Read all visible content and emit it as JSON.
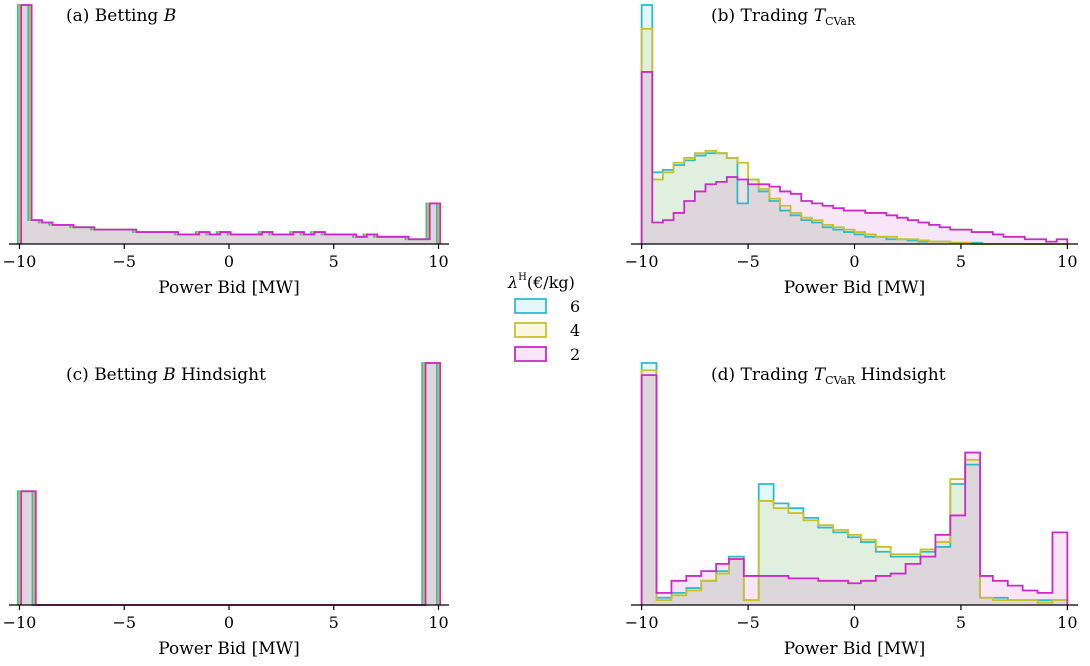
{
  "legend": {
    "title": "λ",
    "title_sup": "H",
    "title_unit": "(€/kg)",
    "entries": [
      {
        "label": "6",
        "color": "#2bbdc9"
      },
      {
        "label": "4",
        "color": "#c9c12b"
      },
      {
        "label": "2",
        "color": "#c92bc9"
      }
    ]
  },
  "chart_data": [
    {
      "type": "histogram",
      "title": "(a) Betting ",
      "title_symbol": "B",
      "title_sub": "",
      "title_suffix": "",
      "xlabel": "Power Bid [MW]",
      "xlim": [
        -10.5,
        10.5
      ],
      "ylim": [
        0,
        1.0
      ],
      "xticks": [
        -10,
        -5,
        0,
        5,
        10
      ],
      "xtick_labels": [
        "−10",
        "−5",
        "0",
        "5",
        "10"
      ],
      "bins": [
        -10,
        -9.5,
        -9,
        -8.5,
        -8,
        -7.5,
        -7,
        -6.5,
        -6,
        -5.5,
        -5,
        -4.5,
        -4,
        -3.5,
        -3,
        -2.5,
        -2,
        -1.5,
        -1,
        -0.5,
        0,
        0.5,
        1,
        1.5,
        2,
        2.5,
        3,
        3.5,
        4,
        4.5,
        5,
        5.5,
        6,
        6.5,
        7,
        7.5,
        8,
        8.5,
        9,
        9.5,
        10
      ],
      "series": [
        {
          "name": "6",
          "offset": -0.08,
          "values": [
            1.0,
            0.1,
            0.09,
            0.08,
            0.08,
            0.07,
            0.07,
            0.06,
            0.06,
            0.06,
            0.06,
            0.05,
            0.05,
            0.05,
            0.05,
            0.04,
            0.04,
            0.05,
            0.04,
            0.05,
            0.04,
            0.04,
            0.04,
            0.05,
            0.04,
            0.04,
            0.05,
            0.04,
            0.05,
            0.04,
            0.04,
            0.04,
            0.03,
            0.04,
            0.03,
            0.03,
            0.03,
            0.02,
            0.02,
            0.17
          ]
        },
        {
          "name": "4",
          "offset": 0.0,
          "values": [
            1.0,
            0.1,
            0.09,
            0.08,
            0.08,
            0.07,
            0.07,
            0.06,
            0.06,
            0.06,
            0.06,
            0.05,
            0.05,
            0.05,
            0.05,
            0.04,
            0.04,
            0.05,
            0.04,
            0.05,
            0.04,
            0.04,
            0.04,
            0.05,
            0.04,
            0.04,
            0.05,
            0.04,
            0.05,
            0.04,
            0.04,
            0.04,
            0.03,
            0.04,
            0.03,
            0.03,
            0.03,
            0.02,
            0.02,
            0.17
          ]
        },
        {
          "name": "2",
          "offset": 0.08,
          "values": [
            1.0,
            0.1,
            0.09,
            0.08,
            0.08,
            0.07,
            0.07,
            0.06,
            0.06,
            0.06,
            0.06,
            0.05,
            0.05,
            0.05,
            0.05,
            0.04,
            0.04,
            0.05,
            0.04,
            0.05,
            0.04,
            0.04,
            0.04,
            0.05,
            0.04,
            0.04,
            0.05,
            0.04,
            0.05,
            0.04,
            0.04,
            0.04,
            0.03,
            0.04,
            0.03,
            0.03,
            0.03,
            0.02,
            0.02,
            0.17
          ]
        }
      ]
    },
    {
      "type": "histogram",
      "title": "(b) Trading ",
      "title_symbol": "T",
      "title_sub": "CVaR",
      "title_suffix": "",
      "xlabel": "Power Bid [MW]",
      "xlim": [
        -10.5,
        10.5
      ],
      "ylim": [
        0,
        1.0
      ],
      "xticks": [
        -10,
        -5,
        0,
        5,
        10
      ],
      "xtick_labels": [
        "−10",
        "−5",
        "0",
        "5",
        "10"
      ],
      "bins": [
        -10,
        -9.5,
        -9,
        -8.5,
        -8,
        -7.5,
        -7,
        -6.5,
        -6,
        -5.5,
        -5,
        -4.5,
        -4,
        -3.5,
        -3,
        -2.5,
        -2,
        -1.5,
        -1,
        -0.5,
        0,
        0.5,
        1,
        1.5,
        2,
        2.5,
        3,
        3.5,
        4,
        4.5,
        5,
        5.5,
        6,
        6.5,
        7,
        7.5,
        8,
        8.5,
        9,
        9.5,
        10
      ],
      "series": [
        {
          "name": "6",
          "offset": 0.0,
          "values": [
            1.0,
            0.3,
            0.31,
            0.33,
            0.35,
            0.37,
            0.38,
            0.38,
            0.36,
            0.17,
            0.27,
            0.22,
            0.18,
            0.14,
            0.12,
            0.1,
            0.09,
            0.07,
            0.06,
            0.05,
            0.04,
            0.03,
            0.03,
            0.02,
            0.02,
            0.015,
            0.01,
            0.01,
            0.01,
            0.005,
            0.005,
            0.005,
            0.0,
            0.0,
            0.0,
            0.0,
            0.0,
            0.0,
            0.0,
            0.0
          ]
        },
        {
          "name": "4",
          "offset": 0.0,
          "values": [
            0.9,
            0.27,
            0.3,
            0.34,
            0.36,
            0.38,
            0.39,
            0.38,
            0.36,
            0.34,
            0.27,
            0.23,
            0.19,
            0.16,
            0.13,
            0.11,
            0.1,
            0.08,
            0.07,
            0.06,
            0.05,
            0.04,
            0.03,
            0.03,
            0.02,
            0.02,
            0.015,
            0.01,
            0.01,
            0.005,
            0.005,
            0.0,
            0.0,
            0.0,
            0.0,
            0.0,
            0.0,
            0.0,
            0.0,
            0.0
          ]
        },
        {
          "name": "2",
          "offset": 0.0,
          "values": [
            0.72,
            0.09,
            0.1,
            0.13,
            0.18,
            0.22,
            0.25,
            0.26,
            0.28,
            0.27,
            0.25,
            0.25,
            0.24,
            0.22,
            0.21,
            0.18,
            0.17,
            0.16,
            0.15,
            0.14,
            0.14,
            0.13,
            0.13,
            0.12,
            0.11,
            0.1,
            0.09,
            0.08,
            0.07,
            0.06,
            0.06,
            0.05,
            0.05,
            0.04,
            0.03,
            0.03,
            0.02,
            0.02,
            0.01,
            0.02
          ]
        }
      ]
    },
    {
      "type": "histogram",
      "title": "(c) Betting ",
      "title_symbol": "B",
      "title_sub": "",
      "title_suffix": " Hindsight",
      "xlabel": "Power Bid [MW]",
      "xlim": [
        -10.5,
        10.5
      ],
      "ylim": [
        0,
        1.0
      ],
      "xticks": [
        -10,
        -5,
        0,
        5,
        10
      ],
      "xtick_labels": [
        "−10",
        "−5",
        "0",
        "5",
        "10"
      ],
      "bins": [
        -10,
        -9.3,
        9.3,
        10
      ],
      "series": [
        {
          "name": "6",
          "offset": -0.08,
          "values": [
            0.47,
            0.0,
            1.0
          ]
        },
        {
          "name": "4",
          "offset": 0.0,
          "values": [
            0.47,
            0.0,
            1.0
          ]
        },
        {
          "name": "2",
          "offset": 0.08,
          "values": [
            0.47,
            0.0,
            1.0
          ]
        }
      ]
    },
    {
      "type": "histogram",
      "title": "(d) Trading ",
      "title_symbol": "T",
      "title_sub": "CVaR",
      "title_suffix": " Hindsight",
      "xlabel": "Power Bid [MW]",
      "xlim": [
        -10.5,
        10.5
      ],
      "ylim": [
        0,
        1.0
      ],
      "xticks": [
        -10,
        -5,
        0,
        5,
        10
      ],
      "xtick_labels": [
        "−10",
        "−5",
        "0",
        "5",
        "10"
      ],
      "bins": [
        -10,
        -9.3,
        -8.6,
        -7.9,
        -7.2,
        -6.5,
        -5.9,
        -5.2,
        -4.5,
        -3.8,
        -3.1,
        -2.4,
        -1.7,
        -1.0,
        -0.3,
        0.3,
        1.0,
        1.7,
        2.4,
        3.1,
        3.8,
        4.5,
        5.2,
        5.9,
        6.5,
        7.2,
        7.9,
        8.6,
        9.3,
        10
      ],
      "series": [
        {
          "name": "6",
          "offset": 0.0,
          "values": [
            1.0,
            0.03,
            0.05,
            0.07,
            0.1,
            0.14,
            0.2,
            0.02,
            0.5,
            0.42,
            0.4,
            0.36,
            0.32,
            0.3,
            0.28,
            0.26,
            0.22,
            0.2,
            0.2,
            0.22,
            0.24,
            0.5,
            0.58,
            0.03,
            0.03,
            0.02,
            0.02,
            0.02,
            0.02
          ]
        },
        {
          "name": "4",
          "offset": 0.0,
          "values": [
            0.97,
            0.02,
            0.04,
            0.06,
            0.1,
            0.13,
            0.19,
            0.02,
            0.43,
            0.4,
            0.38,
            0.35,
            0.33,
            0.31,
            0.29,
            0.27,
            0.24,
            0.21,
            0.21,
            0.23,
            0.26,
            0.52,
            0.6,
            0.03,
            0.02,
            0.02,
            0.02,
            0.01,
            0.02
          ]
        },
        {
          "name": "2",
          "offset": 0.0,
          "values": [
            0.95,
            0.05,
            0.1,
            0.12,
            0.14,
            0.17,
            0.19,
            0.12,
            0.12,
            0.12,
            0.11,
            0.11,
            0.1,
            0.1,
            0.09,
            0.1,
            0.12,
            0.13,
            0.17,
            0.2,
            0.29,
            0.37,
            0.63,
            0.12,
            0.1,
            0.08,
            0.06,
            0.05,
            0.3
          ]
        }
      ]
    }
  ]
}
